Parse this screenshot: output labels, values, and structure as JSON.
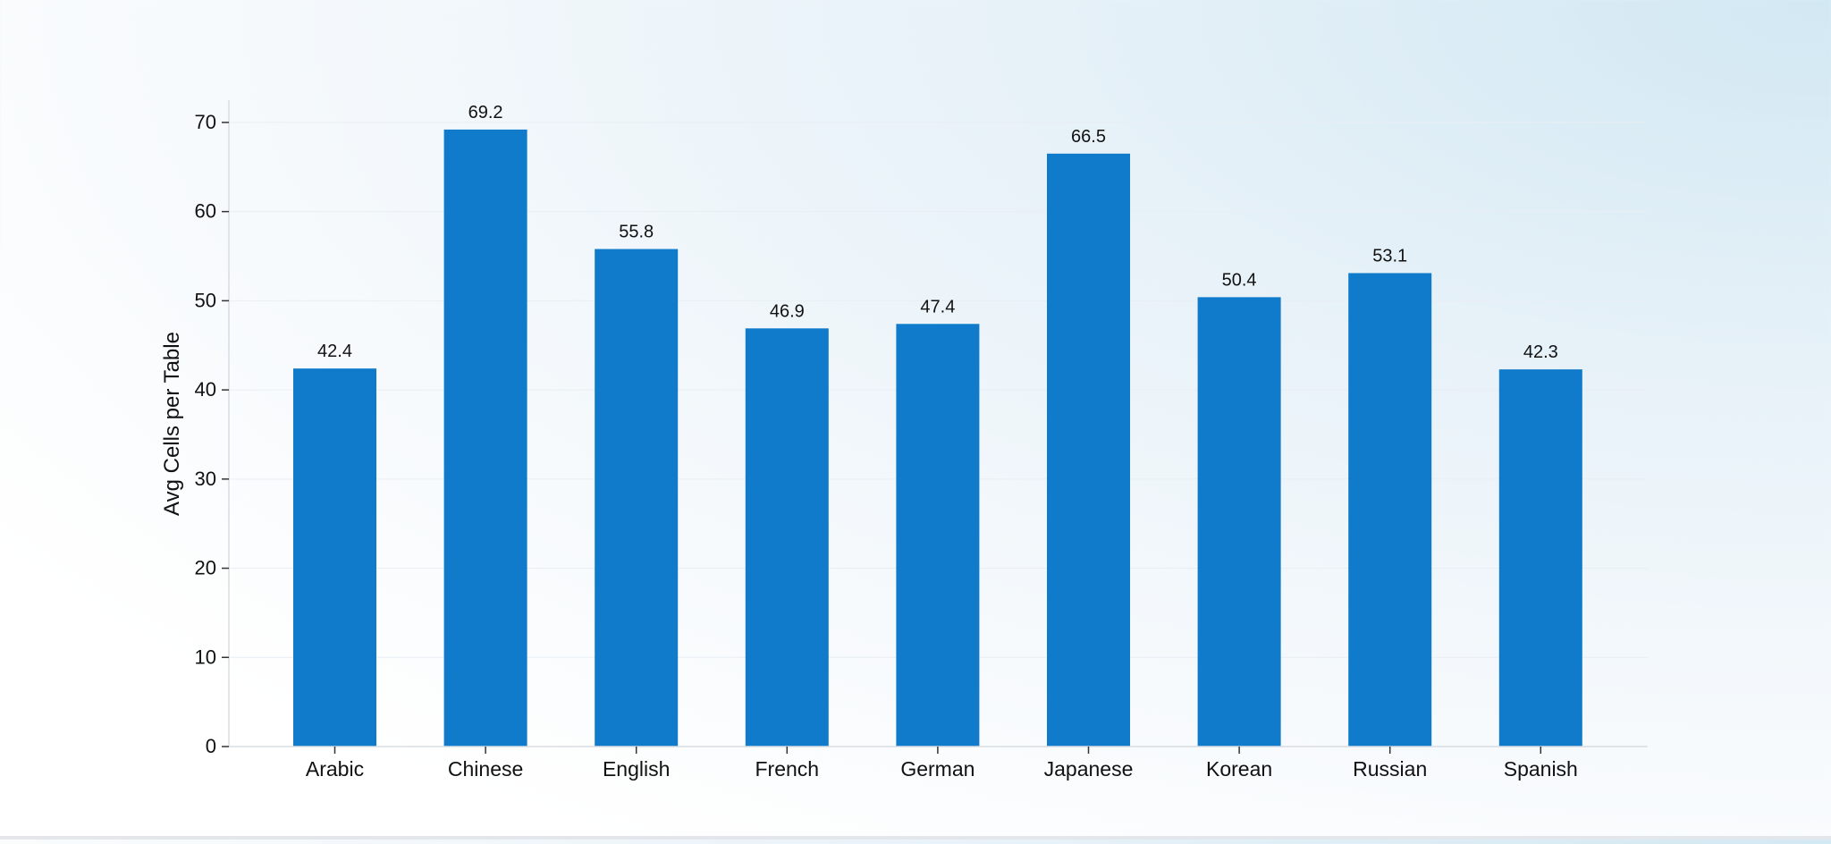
{
  "chart_data": {
    "type": "bar",
    "categories": [
      "Arabic",
      "Chinese",
      "English",
      "French",
      "German",
      "Japanese",
      "Korean",
      "Russian",
      "Spanish"
    ],
    "values": [
      42.4,
      69.2,
      55.8,
      46.9,
      47.4,
      66.5,
      50.4,
      53.1,
      42.3
    ],
    "value_labels": [
      "42.4",
      "69.2",
      "55.8",
      "46.9",
      "47.4",
      "66.5",
      "50.4",
      "53.1",
      "42.3"
    ],
    "title": "",
    "xlabel": "",
    "ylabel": "Avg Cells per Table",
    "ylim": [
      0,
      72.5
    ],
    "yticks": [
      0,
      10,
      20,
      30,
      40,
      50,
      60,
      70
    ],
    "grid": true,
    "legend": "none",
    "bar_color": "#0f7bca",
    "grid_color": "#e8eef3",
    "axis_color": "#d7dde3"
  }
}
